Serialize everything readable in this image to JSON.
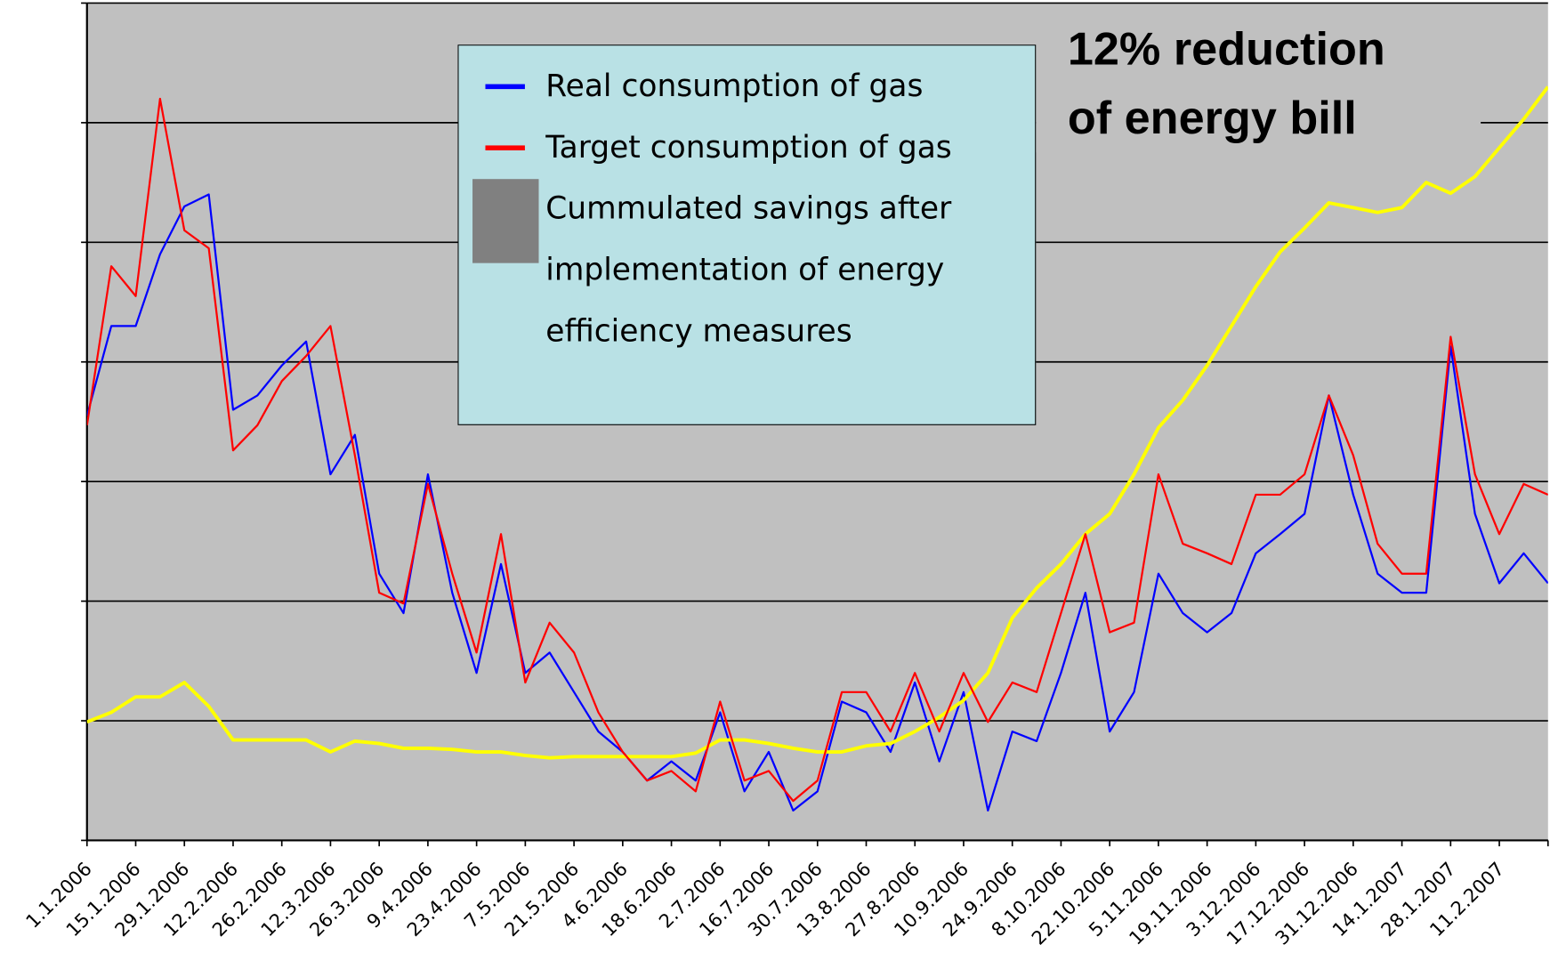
{
  "chart_data": {
    "type": "line",
    "annotation": [
      "12% reduction",
      "of energy bill"
    ],
    "x": [
      "1.1.2006",
      "8.1.2006",
      "15.1.2006",
      "22.1.2006",
      "29.1.2006",
      "5.2.2006",
      "12.2.2006",
      "19.2.2006",
      "26.2.2006",
      "5.3.2006",
      "12.3.2006",
      "19.3.2006",
      "26.3.2006",
      "2.4.2006",
      "9.4.2006",
      "16.4.2006",
      "23.4.2006",
      "30.4.2006",
      "7.5.2006",
      "14.5.2006",
      "21.5.2006",
      "28.5.2006",
      "4.6.2006",
      "11.6.2006",
      "18.6.2006",
      "25.6.2006",
      "2.7.2006",
      "9.7.2006",
      "16.7.2006",
      "23.7.2006",
      "30.7.2006",
      "6.8.2006",
      "13.8.2006",
      "20.8.2006",
      "27.8.2006",
      "3.9.2006",
      "10.9.2006",
      "17.9.2006",
      "24.9.2006",
      "1.10.2006",
      "8.10.2006",
      "15.10.2006",
      "22.10.2006",
      "29.10.2006",
      "5.11.2006",
      "12.11.2006",
      "19.11.2006",
      "26.11.2006",
      "3.12.2006",
      "10.12.2006",
      "17.12.2006",
      "24.12.2006",
      "31.12.2006",
      "7.1.2007",
      "14.1.2007",
      "21.1.2007",
      "28.1.2007",
      "4.2.2007",
      "11.2.2007",
      "18.2.2007",
      "25.2.2007"
    ],
    "series": [
      {
        "name": "Real consumption of gas",
        "color": "#0000ff",
        "values": [
          3.55,
          4.3,
          4.3,
          4.9,
          5.3,
          5.4,
          3.6,
          3.72,
          3.97,
          4.17,
          3.06,
          3.39,
          2.23,
          1.9,
          3.06,
          2.07,
          1.4,
          2.31,
          1.4,
          1.57,
          1.24,
          0.91,
          0.74,
          0.5,
          0.66,
          0.5,
          1.07,
          0.41,
          0.74,
          0.25,
          0.41,
          1.16,
          1.07,
          0.74,
          1.32,
          0.66,
          1.24,
          0.25,
          0.91,
          0.83,
          1.4,
          2.07,
          0.91,
          1.24,
          2.23,
          1.9,
          1.74,
          1.9,
          2.4,
          2.56,
          2.73,
          3.72,
          2.89,
          2.23,
          2.07,
          2.07,
          4.13,
          2.73,
          2.15,
          2.4,
          2.15
        ]
      },
      {
        "name": "Target consumption of gas",
        "color": "#ff0000",
        "values": [
          3.47,
          4.8,
          4.55,
          6.2,
          5.1,
          4.95,
          3.26,
          3.47,
          3.84,
          4.05,
          4.3,
          3.22,
          2.07,
          1.98,
          2.98,
          2.23,
          1.57,
          2.56,
          1.32,
          1.82,
          1.57,
          1.07,
          0.74,
          0.5,
          0.58,
          0.41,
          1.16,
          0.5,
          0.58,
          0.33,
          0.5,
          1.24,
          1.24,
          0.91,
          1.4,
          0.91,
          1.4,
          0.99,
          1.32,
          1.24,
          1.9,
          2.56,
          1.74,
          1.82,
          3.06,
          2.48,
          2.4,
          2.31,
          2.89,
          2.89,
          3.06,
          3.72,
          3.22,
          2.48,
          2.23,
          2.23,
          4.21,
          3.06,
          2.56,
          2.98,
          2.89
        ]
      },
      {
        "name": "Cummulated savings after implementation of energy efficiency measures",
        "color": "#ffff00",
        "values": [
          0.99,
          1.07,
          1.2,
          1.2,
          1.32,
          1.12,
          0.84,
          0.84,
          0.84,
          0.84,
          0.74,
          0.83,
          0.81,
          0.77,
          0.77,
          0.76,
          0.74,
          0.74,
          0.71,
          0.69,
          0.7,
          0.7,
          0.7,
          0.7,
          0.7,
          0.73,
          0.84,
          0.84,
          0.81,
          0.77,
          0.74,
          0.74,
          0.79,
          0.81,
          0.91,
          1.03,
          1.17,
          1.4,
          1.86,
          2.11,
          2.31,
          2.56,
          2.73,
          3.06,
          3.45,
          3.68,
          3.97,
          4.3,
          4.63,
          4.92,
          5.12,
          5.33,
          5.29,
          5.25,
          5.29,
          5.5,
          5.41,
          5.55,
          5.79,
          6.03,
          6.3
        ]
      }
    ],
    "xlim": [
      "1.1.2006",
      "25.2.2007"
    ],
    "xticks": [
      "1.1.2006",
      "15.1.2006",
      "29.1.2006",
      "12.2.2006",
      "26.2.2006",
      "12.3.2006",
      "26.3.2006",
      "9.4.2006",
      "23.4.2006",
      "7.5.2006",
      "21.5.2006",
      "4.6.2006",
      "18.6.2006",
      "2.7.2006",
      "16.7.2006",
      "30.7.2006",
      "13.8.2006",
      "27.8.2006",
      "10.9.2006",
      "24.9.2006",
      "8.10.2006",
      "22.10.2006",
      "5.11.2006",
      "19.11.2006",
      "3.12.2006",
      "17.12.2006",
      "31.12.2006",
      "14.1.2007",
      "28.1.2007",
      "11.2.2007"
    ],
    "ylim": [
      0,
      7
    ],
    "yticks": [
      0,
      1,
      2,
      3,
      4,
      5,
      6,
      7
    ],
    "grid": true,
    "background": "#c0c0c0"
  }
}
